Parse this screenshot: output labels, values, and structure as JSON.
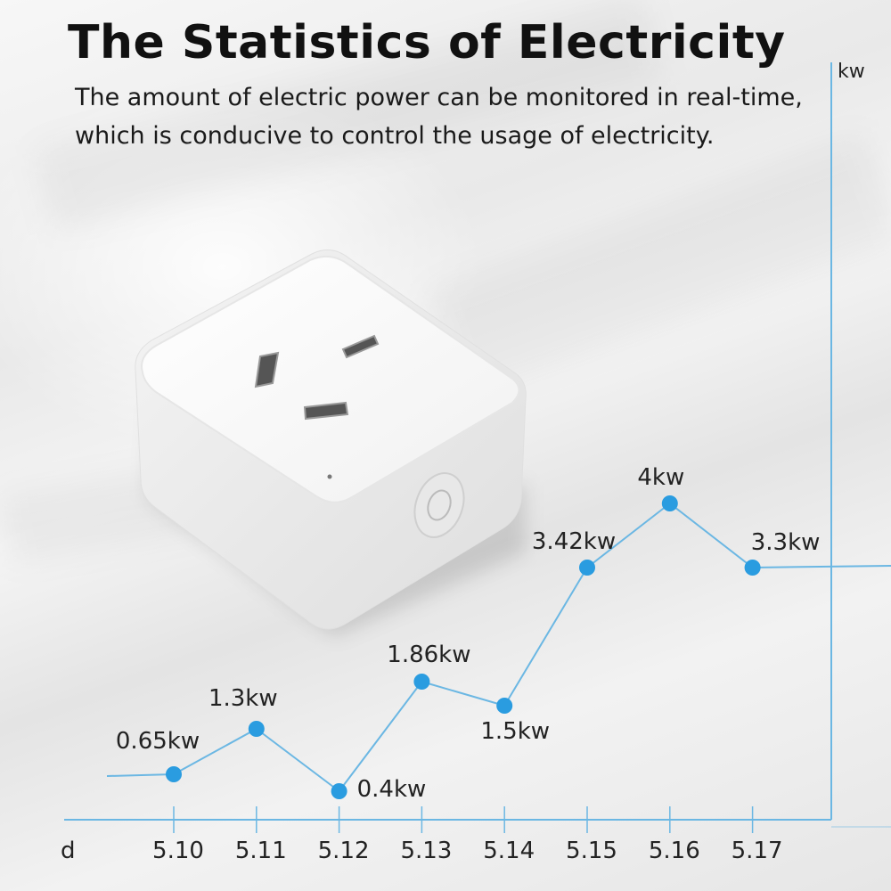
{
  "header": {
    "title": "The Statistics of Electricity",
    "subtitle": "The amount of electric power can be monitored in real-time, which is conducive to control the usage of electricity."
  },
  "chart_data": {
    "type": "line",
    "x": [
      "5.10",
      "5.11",
      "5.12",
      "5.13",
      "5.14",
      "5.15",
      "5.16",
      "5.17"
    ],
    "values": [
      0.65,
      1.3,
      0.4,
      1.86,
      1.5,
      3.42,
      4,
      3.3
    ],
    "data_labels": [
      "0.65kw",
      "1.3kw",
      "0.4kw",
      "1.86kw",
      "1.5kw",
      "3.42kw",
      "4kw",
      "3.3kw"
    ],
    "xlabel": "d",
    "ylabel": "kw",
    "grid": false,
    "colors": {
      "line": "#6bb7e3",
      "point": "#2a9ce0",
      "axis": "#6bb7e3"
    }
  },
  "product": {
    "name_icon": "smart-plug-image"
  }
}
